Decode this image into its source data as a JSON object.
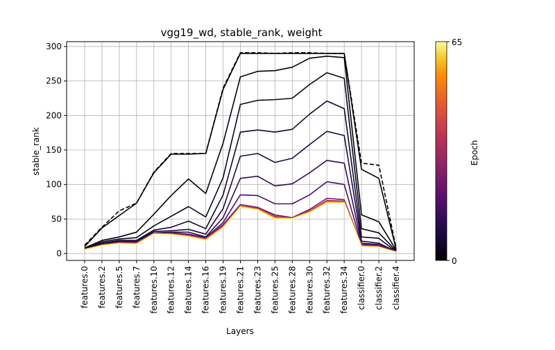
{
  "chart_data": {
    "type": "line",
    "title": "vgg19_wd, stable_rank, weight",
    "xlabel": "Layers",
    "ylabel": "stable_rank",
    "ylim": [
      -10,
      307
    ],
    "yticks": [
      0,
      50,
      100,
      150,
      200,
      250,
      300
    ],
    "grid": true,
    "categories": [
      "features.0",
      "features.2",
      "features.5",
      "features.7",
      "features.10",
      "features.12",
      "features.14",
      "features.16",
      "features.19",
      "features.21",
      "features.23",
      "features.25",
      "features.28",
      "features.30",
      "features.32",
      "features.34",
      "classifier.0",
      "classifier.2",
      "classifier.4"
    ],
    "colorbar": {
      "label": "Epoch",
      "min": 0,
      "max": 65,
      "min_label": "0",
      "max_label": "65"
    },
    "reference_series": {
      "style": "dashed",
      "color": "#000000",
      "values": [
        12,
        38,
        62,
        73,
        118,
        145,
        145,
        145,
        240,
        291,
        291,
        290,
        291,
        291,
        290,
        290,
        131,
        128,
        8
      ]
    },
    "series": [
      {
        "epoch": 0,
        "values": [
          10,
          37,
          55,
          73,
          117,
          144,
          144,
          145,
          238,
          290,
          290,
          290,
          290,
          290,
          290,
          290,
          122,
          109,
          6
        ]
      },
      {
        "epoch": 1,
        "values": [
          8,
          19,
          24,
          31,
          57,
          84,
          108,
          87,
          160,
          256,
          264,
          265,
          270,
          283,
          286,
          284,
          56,
          46,
          5
        ]
      },
      {
        "epoch": 3,
        "values": [
          7,
          17,
          21,
          23,
          40,
          54,
          68,
          53,
          110,
          216,
          222,
          223,
          225,
          245,
          262,
          254,
          36,
          30,
          4
        ]
      },
      {
        "epoch": 5,
        "values": [
          7,
          15,
          19,
          19,
          34,
          38,
          47,
          36,
          85,
          176,
          179,
          176,
          180,
          202,
          221,
          210,
          24,
          22,
          3
        ]
      },
      {
        "epoch": 8,
        "values": [
          6,
          14,
          18,
          18,
          32,
          33,
          35,
          28,
          65,
          141,
          145,
          132,
          138,
          158,
          177,
          171,
          18,
          15,
          3
        ]
      },
      {
        "epoch": 12,
        "values": [
          6,
          13,
          17,
          17,
          30,
          31,
          31,
          24,
          52,
          109,
          112,
          98,
          101,
          117,
          135,
          131,
          15,
          13,
          3
        ]
      },
      {
        "epoch": 17,
        "values": [
          6,
          13,
          16,
          16,
          30,
          30,
          28,
          23,
          45,
          85,
          84,
          72,
          72,
          85,
          104,
          100,
          13,
          12,
          3
        ]
      },
      {
        "epoch": 24,
        "values": [
          6,
          12,
          16,
          16,
          29,
          29,
          27,
          22,
          42,
          71,
          67,
          56,
          52,
          64,
          80,
          78,
          12,
          11,
          3
        ]
      },
      {
        "epoch": 32,
        "values": [
          6,
          12,
          15,
          15,
          29,
          28,
          26,
          21,
          40,
          69,
          66,
          54,
          51,
          62,
          77,
          76,
          11,
          10,
          2
        ]
      },
      {
        "epoch": 41,
        "values": [
          6,
          12,
          15,
          15,
          29,
          28,
          25,
          21,
          39,
          69,
          65,
          53,
          51,
          61,
          76,
          75,
          11,
          10,
          2
        ]
      },
      {
        "epoch": 50,
        "values": [
          6,
          12,
          15,
          14,
          29,
          28,
          25,
          20,
          38,
          68,
          64,
          52,
          51,
          60,
          75,
          74,
          11,
          10,
          2
        ]
      },
      {
        "epoch": 58,
        "values": [
          6,
          12,
          15,
          14,
          28,
          28,
          25,
          20,
          38,
          68,
          64,
          51,
          51,
          60,
          74,
          74,
          10,
          9,
          2
        ]
      },
      {
        "epoch": 65,
        "values": [
          5,
          11,
          14,
          13,
          28,
          27,
          24,
          19,
          37,
          67,
          63,
          50,
          50,
          59,
          73,
          73,
          10,
          9,
          2
        ]
      }
    ]
  }
}
